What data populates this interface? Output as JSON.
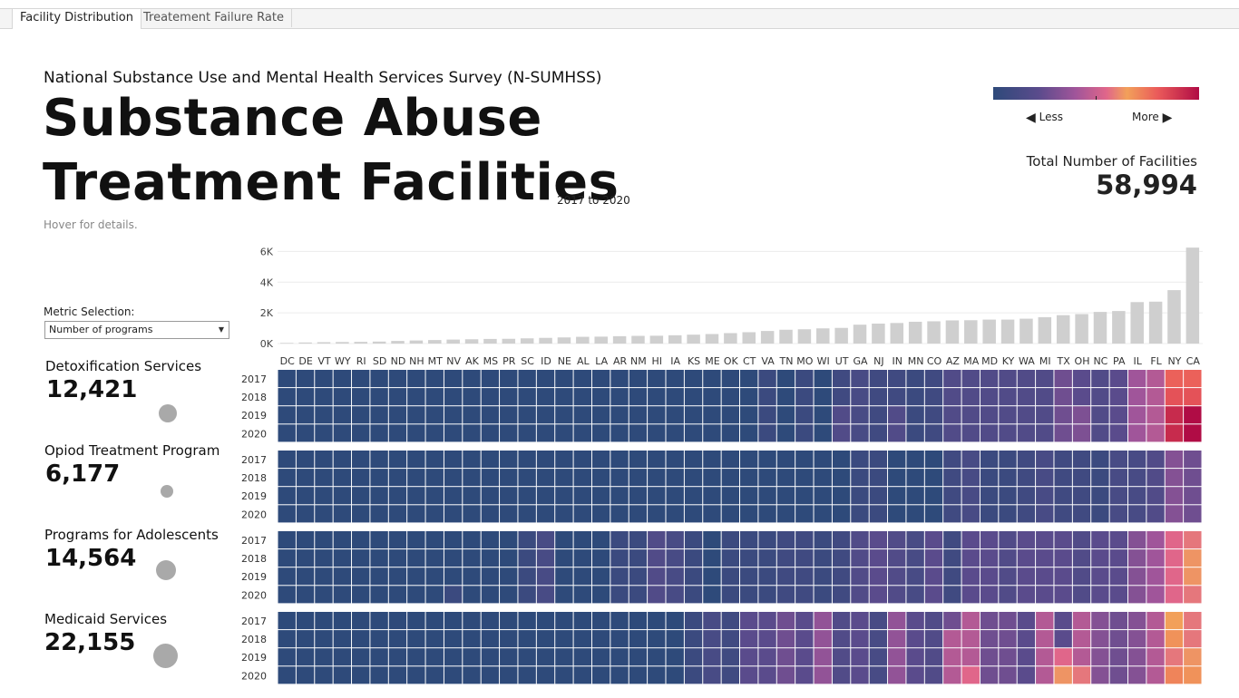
{
  "tabs": [
    {
      "label": "Facility Distribution",
      "active": true
    },
    {
      "label": "Treatement Failure Rate",
      "active": false
    }
  ],
  "header": {
    "subtitle": "National Substance Use and Mental Health Services Survey (N-SUMHSS)",
    "title_line1": "Substance Abuse",
    "title_line2": "Treatment Facilities",
    "date_range": "2017 to 2020",
    "hint": "Hover for details."
  },
  "legend": {
    "less_label": "Less",
    "more_label": "More",
    "colors": [
      "#2e4a7a",
      "#5a4b8c",
      "#a0559a",
      "#e0668a",
      "#f2a05a",
      "#ea5a5a",
      "#b00c45"
    ]
  },
  "total": {
    "label": "Total Number of Facilities",
    "value": "58,994"
  },
  "metric": {
    "label": "Metric Selection:",
    "selected": "Number of programs"
  },
  "services": [
    {
      "name": "Detoxification Services",
      "value": "12,421"
    },
    {
      "name": "Opiod Treatment Program",
      "value": "6,177"
    },
    {
      "name": "Programs for Adolescents",
      "value": "14,564"
    },
    {
      "name": "Medicaid Services",
      "value": "22,155"
    }
  ],
  "chart_data": {
    "type": "bar",
    "title": "",
    "xlabel": "",
    "ylabel": "",
    "ylim": [
      0,
      6200
    ],
    "y_ticks": [
      {
        "value": 0,
        "label": "0K"
      },
      {
        "value": 2000,
        "label": "2K"
      },
      {
        "value": 4000,
        "label": "4K"
      },
      {
        "value": 6000,
        "label": "6K"
      }
    ],
    "categories": [
      "DC",
      "DE",
      "VT",
      "WY",
      "RI",
      "SD",
      "ND",
      "NH",
      "MT",
      "NV",
      "AK",
      "MS",
      "PR",
      "SC",
      "ID",
      "NE",
      "AL",
      "LA",
      "AR",
      "NM",
      "HI",
      "IA",
      "KS",
      "ME",
      "OK",
      "CT",
      "VA",
      "TN",
      "MO",
      "WI",
      "UT",
      "GA",
      "NJ",
      "IN",
      "MN",
      "CO",
      "AZ",
      "MA",
      "MD",
      "KY",
      "WA",
      "MI",
      "TX",
      "OH",
      "NC",
      "PA",
      "IL",
      "FL",
      "NY",
      "CA"
    ],
    "values": [
      40,
      70,
      90,
      100,
      110,
      130,
      170,
      200,
      230,
      260,
      280,
      300,
      310,
      340,
      370,
      400,
      440,
      450,
      480,
      500,
      510,
      540,
      580,
      620,
      680,
      740,
      820,
      900,
      930,
      990,
      1020,
      1230,
      1300,
      1340,
      1420,
      1450,
      1510,
      1520,
      1560,
      1560,
      1620,
      1720,
      1850,
      1920,
      2060,
      2120,
      2700,
      2730,
      3480,
      6250
    ],
    "heatmap": {
      "type": "heatmap",
      "years": [
        "2017",
        "2018",
        "2019",
        "2020"
      ],
      "color_scale": [
        "#2e4a7a",
        "#5a4b8c",
        "#a0559a",
        "#e0668a",
        "#f2a05a",
        "#ea5a5a",
        "#b00c45"
      ],
      "value_range": [
        0,
        6
      ],
      "groups": [
        {
          "name": "Detoxification Services",
          "rows": [
            [
              0,
              0,
              0,
              0,
              0,
              0,
              0,
              0,
              0,
              0,
              0,
              0,
              0,
              0,
              0,
              0,
              0,
              0,
              0,
              0,
              0,
              0,
              0,
              0,
              0,
              0,
              0.3,
              0,
              0.3,
              0,
              0.4,
              0.6,
              0.4,
              0.4,
              0.3,
              0.4,
              0.8,
              0.8,
              0.8,
              0.8,
              0.8,
              0.8,
              1.3,
              1,
              0.8,
              1,
              2,
              2.3,
              4.9,
              4.9
            ],
            [
              0,
              0,
              0,
              0,
              0,
              0,
              0,
              0,
              0,
              0,
              0,
              0,
              0,
              0,
              0,
              0,
              0,
              0,
              0,
              0,
              0,
              0,
              0,
              0,
              0,
              0,
              0.3,
              0,
              0.3,
              0,
              0.4,
              0.6,
              0.4,
              0.4,
              0.3,
              0.4,
              0.8,
              0.8,
              0.8,
              0.8,
              0.8,
              0.8,
              1.3,
              1,
              0.8,
              1,
              2,
              2.3,
              5.1,
              5.1
            ],
            [
              0,
              0,
              0,
              0,
              0,
              0,
              0,
              0,
              0,
              0,
              0,
              0,
              0,
              0,
              0,
              0,
              0,
              0,
              0,
              0,
              0,
              0,
              0,
              0,
              0,
              0,
              0.3,
              0,
              0.3,
              0,
              0.8,
              0.6,
              0.4,
              0.8,
              0.3,
              0.4,
              0.8,
              0.8,
              0.8,
              0.8,
              0.8,
              0.8,
              1.3,
              1.5,
              0.8,
              1,
              2,
              2.3,
              5.6,
              6
            ],
            [
              0,
              0,
              0,
              0,
              0,
              0,
              0,
              0,
              0,
              0,
              0,
              0,
              0,
              0,
              0,
              0,
              0,
              0,
              0,
              0,
              0,
              0,
              0,
              0,
              0,
              0,
              0.3,
              0,
              0.3,
              0,
              0.8,
              0.6,
              0.4,
              0.8,
              0.3,
              0.4,
              0.8,
              0.8,
              0.8,
              0.8,
              0.8,
              0.8,
              1.3,
              1.5,
              0.8,
              1,
              2,
              2.3,
              5.6,
              6
            ]
          ]
        },
        {
          "name": "Opiod Treatment Program",
          "rows": [
            [
              0,
              0,
              0,
              0,
              0,
              0,
              0,
              0,
              0,
              0,
              0,
              0,
              0,
              0,
              0,
              0,
              0,
              0,
              0,
              0,
              0,
              0,
              0,
              0,
              0,
              0,
              0,
              0,
              0,
              0,
              0,
              0.3,
              0.3,
              0,
              0,
              0,
              0.4,
              0.6,
              0.3,
              0.3,
              0.4,
              0.6,
              0.4,
              0.4,
              0.3,
              0.6,
              0.6,
              0.8,
              1.6,
              1.3
            ],
            [
              0,
              0,
              0,
              0,
              0,
              0,
              0,
              0,
              0,
              0,
              0,
              0,
              0,
              0,
              0,
              0,
              0,
              0,
              0,
              0,
              0,
              0,
              0,
              0,
              0,
              0,
              0,
              0,
              0,
              0,
              0,
              0.3,
              0.3,
              0,
              0,
              0,
              0.4,
              0.6,
              0.3,
              0.3,
              0.4,
              0.6,
              0.4,
              0.4,
              0.3,
              0.6,
              0.6,
              0.8,
              1.6,
              1.3
            ],
            [
              0,
              0,
              0,
              0,
              0,
              0,
              0,
              0,
              0,
              0,
              0,
              0,
              0,
              0,
              0,
              0,
              0,
              0,
              0,
              0,
              0,
              0,
              0,
              0,
              0,
              0,
              0,
              0,
              0,
              0,
              0,
              0.3,
              0.3,
              0,
              0,
              0,
              0.4,
              0.6,
              0.3,
              0.3,
              0.4,
              0.6,
              0.4,
              0.4,
              0.3,
              0.6,
              0.6,
              0.8,
              1.6,
              1.3
            ],
            [
              0,
              0,
              0,
              0,
              0,
              0,
              0,
              0,
              0,
              0,
              0,
              0,
              0,
              0,
              0,
              0,
              0,
              0,
              0,
              0,
              0,
              0,
              0,
              0,
              0,
              0,
              0,
              0,
              0,
              0,
              0,
              0.3,
              0.3,
              0,
              0,
              0,
              0.4,
              0.6,
              0.3,
              0.3,
              0.4,
              0.6,
              0.4,
              0.4,
              0.3,
              0.6,
              0.6,
              0.8,
              1.6,
              1.3
            ]
          ]
        },
        {
          "name": "Programs for Adolescents",
          "rows": [
            [
              0,
              0,
              0,
              0,
              0,
              0,
              0,
              0,
              0,
              0,
              0,
              0,
              0,
              0.3,
              0.6,
              0,
              0,
              0,
              0.3,
              0.3,
              0.8,
              0.6,
              0.3,
              0,
              0.3,
              0.3,
              0.3,
              0.4,
              0.4,
              0.3,
              0.4,
              0.8,
              1,
              0.8,
              0.6,
              1,
              0.4,
              1,
              1,
              0.8,
              1,
              1,
              1,
              0.8,
              1,
              1,
              1.6,
              2,
              3,
              3.3
            ],
            [
              0,
              0,
              0,
              0,
              0,
              0,
              0,
              0,
              0,
              0,
              0,
              0,
              0,
              0.3,
              0.6,
              0,
              0,
              0,
              0.3,
              0.3,
              0.8,
              0.6,
              0.3,
              0,
              0.3,
              0.3,
              0.3,
              0.4,
              0.4,
              0.3,
              0.4,
              0.8,
              1,
              0.8,
              0.6,
              1,
              0.4,
              1,
              1,
              0.8,
              1,
              1,
              1,
              0.8,
              1,
              1,
              1.6,
              2,
              3,
              3.8
            ],
            [
              0,
              0,
              0,
              0,
              0,
              0,
              0,
              0,
              0,
              0,
              0,
              0,
              0,
              0.3,
              0.6,
              0,
              0,
              0,
              0.3,
              0.3,
              0.8,
              0.6,
              0.3,
              0,
              0.3,
              0.3,
              0.3,
              0.4,
              0.4,
              0.3,
              0.4,
              0.8,
              1,
              0.8,
              0.6,
              1,
              0.4,
              1,
              1,
              0.8,
              1,
              1,
              1,
              0.8,
              1,
              1,
              1.6,
              2,
              3,
              3.8
            ],
            [
              0,
              0,
              0,
              0,
              0,
              0,
              0,
              0,
              0,
              0.3,
              0,
              0,
              0,
              0.3,
              0.6,
              0,
              0,
              0,
              0.3,
              0.3,
              0.8,
              0.6,
              0.3,
              0,
              0.3,
              0.3,
              0.3,
              0.4,
              0.4,
              0.3,
              0.4,
              0.8,
              1,
              0.8,
              0.6,
              1,
              0.4,
              1,
              1,
              0.8,
              1,
              1,
              1,
              0.8,
              1,
              1,
              1.6,
              2,
              3,
              3.3
            ]
          ]
        },
        {
          "name": "Medicaid Services",
          "rows": [
            [
              0,
              0,
              0,
              0,
              0,
              0,
              0,
              0,
              0,
              0,
              0,
              0,
              0,
              0,
              0,
              0,
              0,
              0,
              0,
              0,
              0,
              0,
              0.3,
              0.6,
              0.4,
              1,
              1,
              1.3,
              1,
              1.8,
              0.8,
              1,
              0.6,
              1.8,
              1,
              0.8,
              1.3,
              2.3,
              1.3,
              1.3,
              1,
              2.3,
              1,
              2.3,
              1.6,
              1.3,
              1.6,
              2.3,
              4,
              3.3
            ],
            [
              0,
              0,
              0,
              0,
              0,
              0,
              0,
              0,
              0,
              0,
              0,
              0,
              0,
              0,
              0,
              0,
              0,
              0,
              0,
              0,
              0,
              0,
              0.3,
              0.6,
              0.4,
              1,
              1,
              1.3,
              1,
              1.8,
              0.8,
              1,
              0.6,
              1.8,
              1,
              0.8,
              2.3,
              2.3,
              1.3,
              1.3,
              1,
              2.3,
              1,
              2.3,
              1.6,
              1.3,
              1.6,
              2.3,
              4.2,
              3.3
            ],
            [
              0,
              0,
              0,
              0,
              0,
              0,
              0,
              0,
              0,
              0,
              0,
              0,
              0,
              0,
              0,
              0,
              0,
              0,
              0,
              0,
              0,
              0,
              0.3,
              0.6,
              0.4,
              1,
              1,
              1.3,
              1,
              1.8,
              0.8,
              1,
              0.6,
              1.8,
              1,
              0.8,
              2.3,
              2.3,
              1.3,
              1.3,
              1,
              2.3,
              3,
              2.3,
              1.6,
              1.3,
              1.6,
              2.3,
              3.3,
              3.8
            ],
            [
              0,
              0,
              0,
              0,
              0,
              0,
              0,
              0,
              0,
              0,
              0,
              0,
              0,
              0,
              0,
              0,
              0,
              0,
              0,
              0,
              0,
              0,
              0.3,
              0.6,
              0.4,
              1,
              1,
              1.3,
              1,
              1.8,
              0.8,
              1,
              0.6,
              1.8,
              1,
              0.8,
              2.3,
              3,
              1.3,
              1.3,
              1,
              2.3,
              3.8,
              3.3,
              1.6,
              1.3,
              1.6,
              2.3,
              4.4,
              4.2
            ]
          ]
        }
      ]
    }
  }
}
